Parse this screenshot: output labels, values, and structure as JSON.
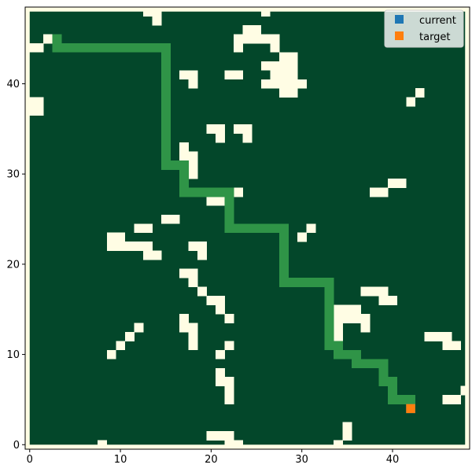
{
  "chart_data": {
    "type": "heatmap",
    "grid_size": [
      49,
      49
    ],
    "xlim": [
      -0.5,
      48.5
    ],
    "ylim": [
      -0.5,
      48.5
    ],
    "x_ticks": [
      0,
      10,
      20,
      30,
      40
    ],
    "y_ticks": [
      0,
      10,
      20,
      30,
      40
    ],
    "colors": {
      "free": "#03472a",
      "obstacle": "#fffde4",
      "border": "#fffde4",
      "path": "#2f9447",
      "current": "#1f77b4",
      "target": "#ff7f0e"
    },
    "obstacles": [
      [
        13,
        48
      ],
      [
        14,
        48
      ],
      [
        26,
        48
      ],
      [
        14,
        47
      ],
      [
        24,
        46
      ],
      [
        25,
        46
      ],
      [
        23,
        45
      ],
      [
        24,
        45
      ],
      [
        25,
        45
      ],
      [
        26,
        45
      ],
      [
        27,
        45
      ],
      [
        2,
        45
      ],
      [
        23,
        44
      ],
      [
        27,
        44
      ],
      [
        0,
        44
      ],
      [
        1,
        44
      ],
      [
        28,
        43
      ],
      [
        29,
        43
      ],
      [
        26,
        42
      ],
      [
        27,
        42
      ],
      [
        28,
        42
      ],
      [
        29,
        42
      ],
      [
        17,
        41
      ],
      [
        18,
        41
      ],
      [
        22,
        41
      ],
      [
        23,
        41
      ],
      [
        27,
        41
      ],
      [
        28,
        41
      ],
      [
        29,
        41
      ],
      [
        18,
        40
      ],
      [
        26,
        40
      ],
      [
        27,
        40
      ],
      [
        28,
        40
      ],
      [
        29,
        40
      ],
      [
        30,
        40
      ],
      [
        28,
        39
      ],
      [
        29,
        39
      ],
      [
        43,
        39
      ],
      [
        0,
        38
      ],
      [
        1,
        38
      ],
      [
        42,
        38
      ],
      [
        0,
        37
      ],
      [
        1,
        37
      ],
      [
        15,
        36
      ],
      [
        20,
        35
      ],
      [
        21,
        35
      ],
      [
        23,
        35
      ],
      [
        24,
        35
      ],
      [
        21,
        34
      ],
      [
        24,
        34
      ],
      [
        17,
        33
      ],
      [
        17,
        32
      ],
      [
        18,
        32
      ],
      [
        18,
        31
      ],
      [
        18,
        30
      ],
      [
        17,
        29
      ],
      [
        40,
        29
      ],
      [
        41,
        29
      ],
      [
        22,
        28
      ],
      [
        23,
        28
      ],
      [
        38,
        28
      ],
      [
        39,
        28
      ],
      [
        20,
        27
      ],
      [
        21,
        27
      ],
      [
        15,
        25
      ],
      [
        16,
        25
      ],
      [
        12,
        24
      ],
      [
        13,
        24
      ],
      [
        31,
        24
      ],
      [
        9,
        23
      ],
      [
        10,
        23
      ],
      [
        30,
        23
      ],
      [
        9,
        22
      ],
      [
        10,
        22
      ],
      [
        11,
        22
      ],
      [
        12,
        22
      ],
      [
        13,
        22
      ],
      [
        18,
        22
      ],
      [
        19,
        22
      ],
      [
        13,
        21
      ],
      [
        14,
        21
      ],
      [
        19,
        21
      ],
      [
        17,
        19
      ],
      [
        18,
        19
      ],
      [
        18,
        18
      ],
      [
        19,
        17
      ],
      [
        37,
        17
      ],
      [
        38,
        17
      ],
      [
        39,
        17
      ],
      [
        20,
        16
      ],
      [
        21,
        16
      ],
      [
        39,
        16
      ],
      [
        40,
        16
      ],
      [
        21,
        15
      ],
      [
        34,
        15
      ],
      [
        35,
        15
      ],
      [
        36,
        15
      ],
      [
        17,
        14
      ],
      [
        22,
        14
      ],
      [
        34,
        14
      ],
      [
        35,
        14
      ],
      [
        36,
        14
      ],
      [
        37,
        14
      ],
      [
        12,
        13
      ],
      [
        17,
        13
      ],
      [
        18,
        13
      ],
      [
        34,
        13
      ],
      [
        37,
        13
      ],
      [
        11,
        12
      ],
      [
        18,
        12
      ],
      [
        34,
        12
      ],
      [
        44,
        12
      ],
      [
        45,
        12
      ],
      [
        46,
        12
      ],
      [
        10,
        11
      ],
      [
        18,
        11
      ],
      [
        22,
        11
      ],
      [
        46,
        11
      ],
      [
        47,
        11
      ],
      [
        9,
        10
      ],
      [
        21,
        10
      ],
      [
        34,
        10
      ],
      [
        35,
        10
      ],
      [
        36,
        10
      ],
      [
        36,
        9
      ],
      [
        37,
        9
      ],
      [
        21,
        8
      ],
      [
        21,
        7
      ],
      [
        22,
        7
      ],
      [
        22,
        6
      ],
      [
        48,
        6
      ],
      [
        22,
        5
      ],
      [
        46,
        5
      ],
      [
        47,
        5
      ],
      [
        35,
        2
      ],
      [
        20,
        1
      ],
      [
        21,
        1
      ],
      [
        22,
        1
      ],
      [
        35,
        1
      ],
      [
        8,
        0
      ],
      [
        22,
        0
      ],
      [
        23,
        0
      ],
      [
        34,
        0
      ]
    ],
    "path": [
      [
        3,
        45
      ],
      [
        3,
        44
      ],
      [
        4,
        44
      ],
      [
        5,
        44
      ],
      [
        6,
        44
      ],
      [
        7,
        44
      ],
      [
        8,
        44
      ],
      [
        9,
        44
      ],
      [
        10,
        44
      ],
      [
        11,
        44
      ],
      [
        12,
        44
      ],
      [
        13,
        44
      ],
      [
        14,
        44
      ],
      [
        15,
        44
      ],
      [
        15,
        43
      ],
      [
        15,
        42
      ],
      [
        15,
        41
      ],
      [
        15,
        40
      ],
      [
        15,
        39
      ],
      [
        15,
        38
      ],
      [
        15,
        37
      ],
      [
        15,
        36
      ],
      [
        15,
        35
      ],
      [
        15,
        34
      ],
      [
        15,
        33
      ],
      [
        15,
        32
      ],
      [
        15,
        31
      ],
      [
        16,
        31
      ],
      [
        17,
        31
      ],
      [
        17,
        30
      ],
      [
        17,
        29
      ],
      [
        17,
        28
      ],
      [
        18,
        28
      ],
      [
        19,
        28
      ],
      [
        20,
        28
      ],
      [
        21,
        28
      ],
      [
        22,
        28
      ],
      [
        22,
        27
      ],
      [
        22,
        26
      ],
      [
        22,
        25
      ],
      [
        22,
        24
      ],
      [
        23,
        24
      ],
      [
        24,
        24
      ],
      [
        25,
        24
      ],
      [
        26,
        24
      ],
      [
        27,
        24
      ],
      [
        28,
        24
      ],
      [
        28,
        23
      ],
      [
        28,
        22
      ],
      [
        28,
        21
      ],
      [
        28,
        20
      ],
      [
        28,
        19
      ],
      [
        28,
        18
      ],
      [
        29,
        18
      ],
      [
        30,
        18
      ],
      [
        31,
        18
      ],
      [
        32,
        18
      ],
      [
        33,
        18
      ],
      [
        33,
        17
      ],
      [
        33,
        16
      ],
      [
        33,
        15
      ],
      [
        33,
        14
      ],
      [
        33,
        13
      ],
      [
        33,
        12
      ],
      [
        33,
        11
      ],
      [
        34,
        11
      ],
      [
        34,
        10
      ],
      [
        35,
        10
      ],
      [
        36,
        10
      ],
      [
        36,
        9
      ],
      [
        37,
        9
      ],
      [
        38,
        9
      ],
      [
        39,
        9
      ],
      [
        39,
        8
      ],
      [
        39,
        7
      ],
      [
        40,
        7
      ],
      [
        40,
        6
      ],
      [
        40,
        5
      ],
      [
        41,
        5
      ],
      [
        42,
        5
      ]
    ],
    "current": [
      42,
      4
    ],
    "target": [
      42,
      4
    ],
    "legend": {
      "placement": "top-right",
      "entries": [
        {
          "label": "current",
          "color_key": "current"
        },
        {
          "label": "target",
          "color_key": "target"
        }
      ]
    }
  }
}
